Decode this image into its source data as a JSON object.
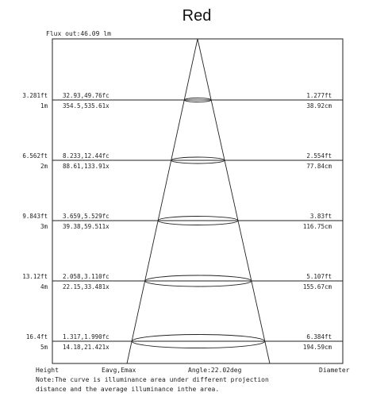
{
  "title": "Red",
  "flux_label": "Flux out:46.09 lm",
  "rows": [
    {
      "height_ft": "3.281ft",
      "height_m": "1m",
      "illum_fc": "32.93,49.76fc",
      "illum_lx": "354.5,535.61x",
      "diam_ft": "1.277ft",
      "diam_cm": "38.92cm"
    },
    {
      "height_ft": "6.562ft",
      "height_m": "2m",
      "illum_fc": "8.233,12.44fc",
      "illum_lx": "88.61,133.91x",
      "diam_ft": "2.554ft",
      "diam_cm": "77.84cm"
    },
    {
      "height_ft": "9.843ft",
      "height_m": "3m",
      "illum_fc": "3.659,5.529fc",
      "illum_lx": "39.38,59.511x",
      "diam_ft": "3.83ft",
      "diam_cm": "116.75cm"
    },
    {
      "height_ft": "13.12ft",
      "height_m": "4m",
      "illum_fc": "2.058,3.110fc",
      "illum_lx": "22.15,33.481x",
      "diam_ft": "5.107ft",
      "diam_cm": "155.67cm"
    },
    {
      "height_ft": "16.4ft",
      "height_m": "5m",
      "illum_fc": "1.317,1.990fc",
      "illum_lx": "14.18,21.421x",
      "diam_ft": "6.384ft",
      "diam_cm": "194.59cm"
    }
  ],
  "footer": {
    "height": "Height",
    "eavg": "Eavg,Emax",
    "angle": "Angle:22.02deg",
    "diameter": "Diameter",
    "note1": "Note:The curve is illuminance area under different projection",
    "note2": "distance and the average illuminance inthe area."
  }
}
